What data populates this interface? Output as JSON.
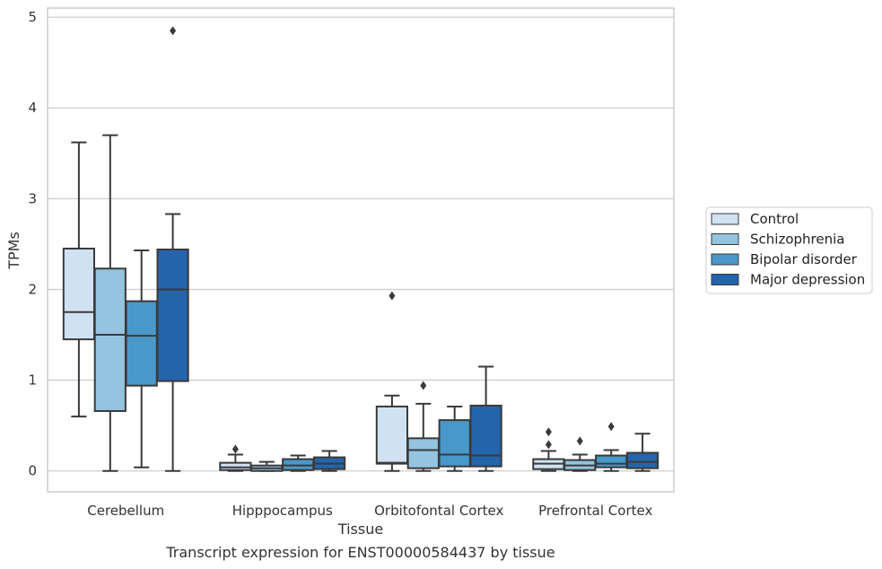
{
  "chart_data": {
    "type": "box",
    "ylabel": "TPMs",
    "xlabel": "Tissue",
    "caption": "Transcript expression for ENST00000584437 by tissue",
    "ylim": [
      -0.23,
      5.1
    ],
    "yticks": [
      "0",
      "1",
      "2",
      "3",
      "4",
      "5"
    ],
    "grid": "horizontal",
    "legend_position": "right",
    "categories": [
      "Cerebellum",
      "Hipppocampus",
      "Orbitofontal Cortex",
      "Prefrontal Cortex"
    ],
    "series": [
      {
        "name": "Control",
        "color": "#d0e1f2",
        "boxes": [
          {
            "whislo": 0.6,
            "q1": 1.45,
            "med": 1.75,
            "q3": 2.45,
            "whishi": 3.62,
            "fliers": []
          },
          {
            "whislo": 0.0,
            "q1": 0.01,
            "med": 0.04,
            "q3": 0.09,
            "whishi": 0.18,
            "fliers": [
              0.24
            ]
          },
          {
            "whislo": 0.0,
            "q1": 0.08,
            "med": 0.09,
            "q3": 0.71,
            "whishi": 0.83,
            "fliers": [
              1.93
            ]
          },
          {
            "whislo": 0.0,
            "q1": 0.02,
            "med": 0.08,
            "q3": 0.13,
            "whishi": 0.22,
            "fliers": [
              0.29,
              0.43
            ]
          }
        ]
      },
      {
        "name": "Schizophrenia",
        "color": "#94c4df",
        "boxes": [
          {
            "whislo": 0.0,
            "q1": 0.66,
            "med": 1.5,
            "q3": 2.23,
            "whishi": 3.7,
            "fliers": []
          },
          {
            "whislo": 0.0,
            "q1": 0.0,
            "med": 0.03,
            "q3": 0.06,
            "whishi": 0.1,
            "fliers": []
          },
          {
            "whislo": 0.0,
            "q1": 0.03,
            "med": 0.23,
            "q3": 0.36,
            "whishi": 0.74,
            "fliers": [
              0.94
            ]
          },
          {
            "whislo": 0.0,
            "q1": 0.01,
            "med": 0.06,
            "q3": 0.12,
            "whishi": 0.18,
            "fliers": [
              0.33
            ]
          }
        ]
      },
      {
        "name": "Bipolar disorder",
        "color": "#4a98c9",
        "boxes": [
          {
            "whislo": 0.04,
            "q1": 0.94,
            "med": 1.49,
            "q3": 1.87,
            "whishi": 2.43,
            "fliers": []
          },
          {
            "whislo": 0.0,
            "q1": 0.01,
            "med": 0.06,
            "q3": 0.13,
            "whishi": 0.17,
            "fliers": []
          },
          {
            "whislo": 0.0,
            "q1": 0.05,
            "med": 0.18,
            "q3": 0.56,
            "whishi": 0.71,
            "fliers": []
          },
          {
            "whislo": 0.0,
            "q1": 0.04,
            "med": 0.08,
            "q3": 0.17,
            "whishi": 0.23,
            "fliers": [
              0.49
            ]
          }
        ]
      },
      {
        "name": "Major depression",
        "color": "#2464ab",
        "boxes": [
          {
            "whislo": 0.0,
            "q1": 0.99,
            "med": 2.0,
            "q3": 2.44,
            "whishi": 2.83,
            "fliers": [
              4.85
            ]
          },
          {
            "whislo": 0.0,
            "q1": 0.02,
            "med": 0.08,
            "q3": 0.15,
            "whishi": 0.22,
            "fliers": []
          },
          {
            "whislo": 0.0,
            "q1": 0.05,
            "med": 0.17,
            "q3": 0.72,
            "whishi": 1.15,
            "fliers": []
          },
          {
            "whislo": 0.0,
            "q1": 0.03,
            "med": 0.1,
            "q3": 0.2,
            "whishi": 0.41,
            "fliers": []
          }
        ]
      }
    ]
  }
}
